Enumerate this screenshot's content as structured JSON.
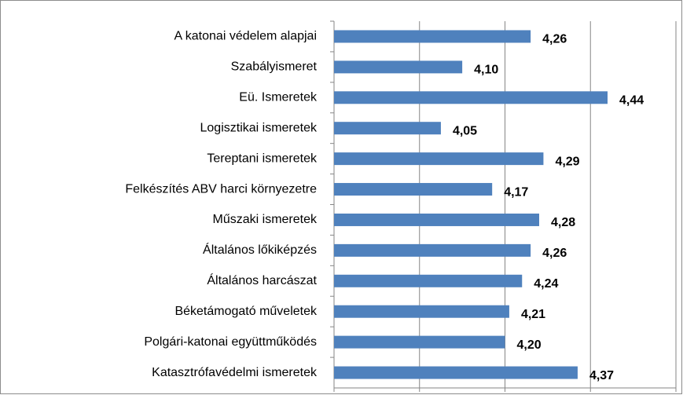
{
  "chart_data": {
    "type": "barh",
    "categories": [
      "A katonai védelem alapjai",
      "Szabályismeret",
      "Eü. Ismeretek",
      "Logisztikai ismeretek",
      "Tereptani ismeretek",
      "Felkészítés ABV harci környezetre",
      "Műszaki ismeretek",
      "Általános lőkiképzés",
      "Általános harcászat",
      "Béketámogató műveletek",
      "Polgári-katonai együttműködés",
      "Katasztrófavédelmi ismeretek"
    ],
    "values": [
      4.26,
      4.1,
      4.44,
      4.05,
      4.29,
      4.17,
      4.28,
      4.26,
      4.24,
      4.21,
      4.2,
      4.37
    ],
    "value_labels": [
      "4,26",
      "4,10",
      "4,44",
      "4,05",
      "4,29",
      "4,17",
      "4,28",
      "4,26",
      "4,24",
      "4,21",
      "4,20",
      "4,37"
    ],
    "color": "#4f81bd",
    "xlim": [
      3.8,
      4.6
    ],
    "xticks": [
      3.8,
      4.0,
      4.2,
      4.4,
      4.6
    ],
    "grid": true
  }
}
